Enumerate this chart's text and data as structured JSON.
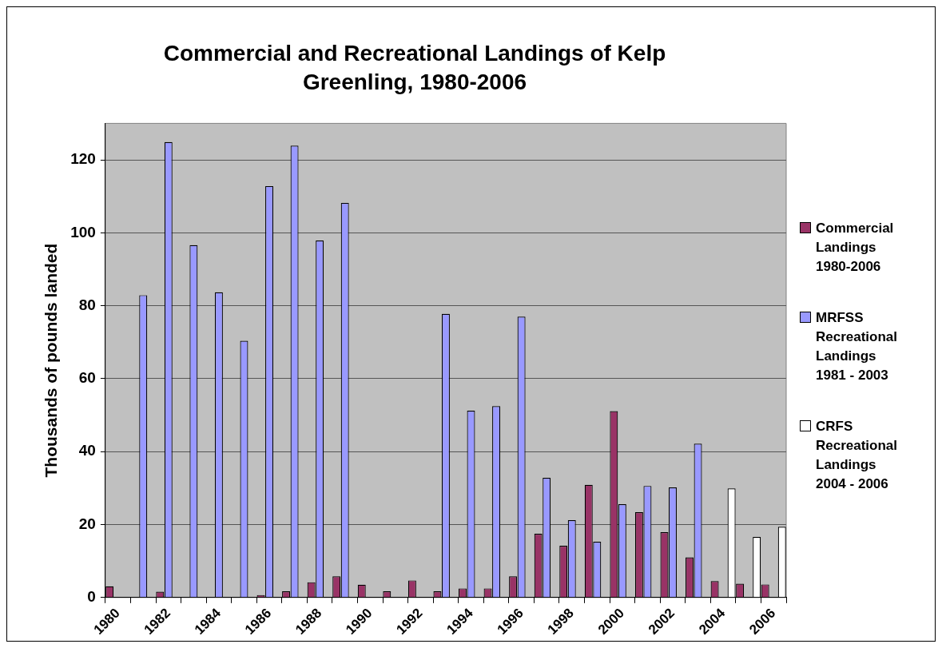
{
  "chart_data": {
    "type": "bar",
    "title": "Commercial and Recreational Landings of Kelp Greenling, 1980-2006",
    "ylabel": "Thousands of pounds landed",
    "categories": [
      "1980",
      null,
      "1982",
      null,
      "1984",
      null,
      "1986",
      null,
      "1988",
      null,
      "1990",
      null,
      "1992",
      null,
      "1994",
      null,
      "1996",
      null,
      "1998",
      null,
      "2000",
      null,
      "2002",
      null,
      "2004",
      null,
      "2006"
    ],
    "series": [
      {
        "name": "Commercial Landings 1980-2006",
        "color": "#993366",
        "values": [
          3.1,
          null,
          1.6,
          null,
          null,
          null,
          0.7,
          1.7,
          4.2,
          5.8,
          3.5,
          1.7,
          4.7,
          1.7,
          2.5,
          2.5,
          5.8,
          17.5,
          14.2,
          30.9,
          51.1,
          23.4,
          17.9,
          11.0,
          4.5,
          3.8,
          3.6
        ]
      },
      {
        "name": "MRFSS Recreational Landings 1981 - 2003",
        "color": "#9999ff",
        "values": [
          null,
          82.9,
          124.9,
          96.6,
          83.7,
          70.4,
          112.8,
          123.9,
          97.9,
          108.2,
          null,
          null,
          null,
          77.8,
          51.2,
          52.5,
          77.0,
          32.8,
          21.2,
          15.3,
          25.6,
          30.6,
          30.2,
          42.2,
          null,
          null,
          null
        ]
      },
      {
        "name": "CRFS Recreational Landings 2004 - 2006",
        "color": "#ffffff",
        "values": [
          null,
          null,
          null,
          null,
          null,
          null,
          null,
          null,
          null,
          null,
          null,
          null,
          null,
          null,
          null,
          null,
          null,
          null,
          null,
          null,
          null,
          null,
          null,
          null,
          29.9,
          16.6,
          19.4
        ]
      }
    ],
    "ylim": [
      0,
      130
    ],
    "yticks": [
      0,
      20,
      40,
      60,
      80,
      100,
      120
    ],
    "grid": "y",
    "legend": "right"
  }
}
